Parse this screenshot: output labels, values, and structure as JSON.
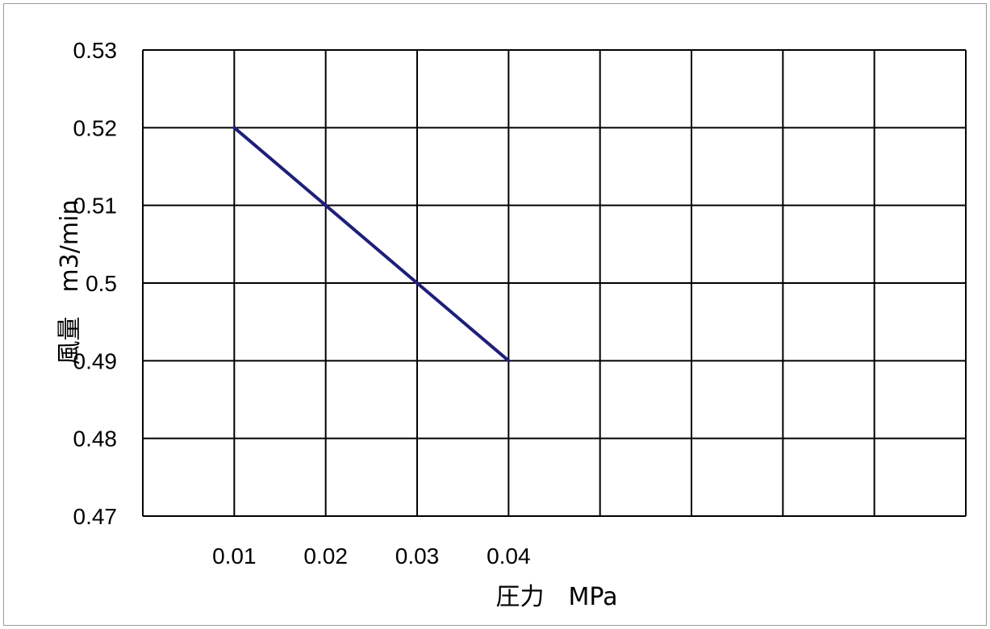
{
  "chart_data": {
    "type": "line",
    "xlabel": "圧力　MPa",
    "ylabel": "風量　m3/min",
    "x_tick_labels": [
      "0.01",
      "0.02",
      "0.03",
      "0.04"
    ],
    "y_tick_labels": [
      "0.53",
      "0.52",
      "0.51",
      "0.5",
      "0.49",
      "0.48",
      "0.47"
    ],
    "ylim": [
      0.47,
      0.53
    ],
    "x_categories": 9,
    "series": [
      {
        "x": [
          0.01,
          0.02,
          0.03,
          0.04
        ],
        "values": [
          0.52,
          0.51,
          0.5,
          0.49
        ],
        "color": "#1f1f7a"
      }
    ],
    "grid": true,
    "legend": "none",
    "colors": {
      "gridline": "#000000",
      "line": "#1f1f7a"
    }
  }
}
